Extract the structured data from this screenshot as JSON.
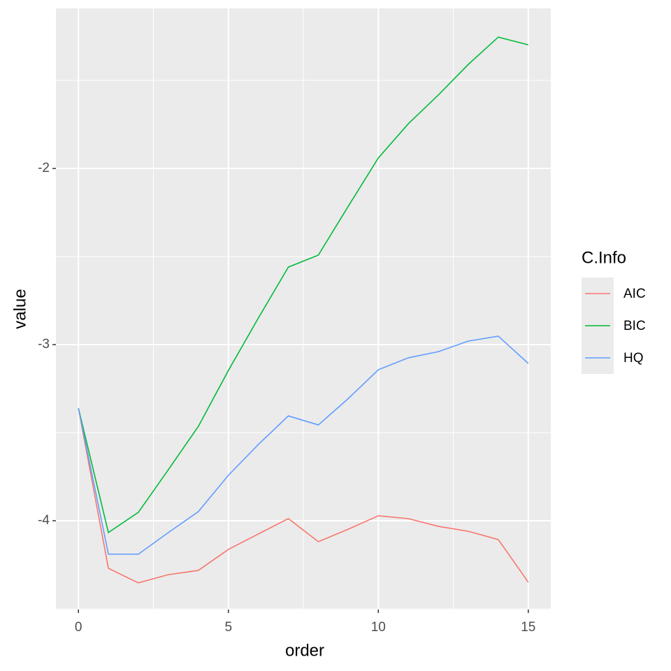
{
  "chart_data": {
    "type": "line",
    "x_label": "order",
    "y_label": "value",
    "legend_title": "C.Info",
    "legend_position": "right",
    "x": [
      0,
      1,
      2,
      3,
      4,
      5,
      6,
      7,
      8,
      9,
      10,
      11,
      12,
      13,
      14,
      15
    ],
    "series": [
      {
        "name": "AIC",
        "color": "#F8766D",
        "values": [
          -3.361,
          -4.27,
          -4.353,
          -4.306,
          -4.282,
          -4.163,
          -4.075,
          -3.988,
          -4.119,
          -4.048,
          -3.972,
          -3.988,
          -4.032,
          -4.06,
          -4.107,
          -4.349
        ]
      },
      {
        "name": "BIC",
        "color": "#00BA38",
        "values": [
          -3.361,
          -4.067,
          -3.952,
          -3.71,
          -3.464,
          -3.147,
          -2.849,
          -2.56,
          -2.492,
          -2.214,
          -1.94,
          -1.746,
          -1.583,
          -1.409,
          -1.254,
          -1.298
        ]
      },
      {
        "name": "HQ",
        "color": "#619CFF",
        "values": [
          -3.361,
          -4.19,
          -4.19,
          -4.067,
          -3.948,
          -3.742,
          -3.567,
          -3.405,
          -3.456,
          -3.306,
          -3.143,
          -3.075,
          -3.04,
          -2.98,
          -2.952,
          -3.107
        ]
      }
    ],
    "xlim": [
      -0.75,
      15.75
    ],
    "xticks": [
      0,
      5,
      10,
      15
    ],
    "minor_xticks": [
      2.5,
      7.5,
      12.5
    ],
    "ylim": [
      -4.504,
      -1.091
    ],
    "yticks": [
      -4,
      -3,
      -2
    ],
    "minor_yticks": [
      -4.5,
      -3.5,
      -2.5,
      -1.5
    ],
    "grid": true
  }
}
